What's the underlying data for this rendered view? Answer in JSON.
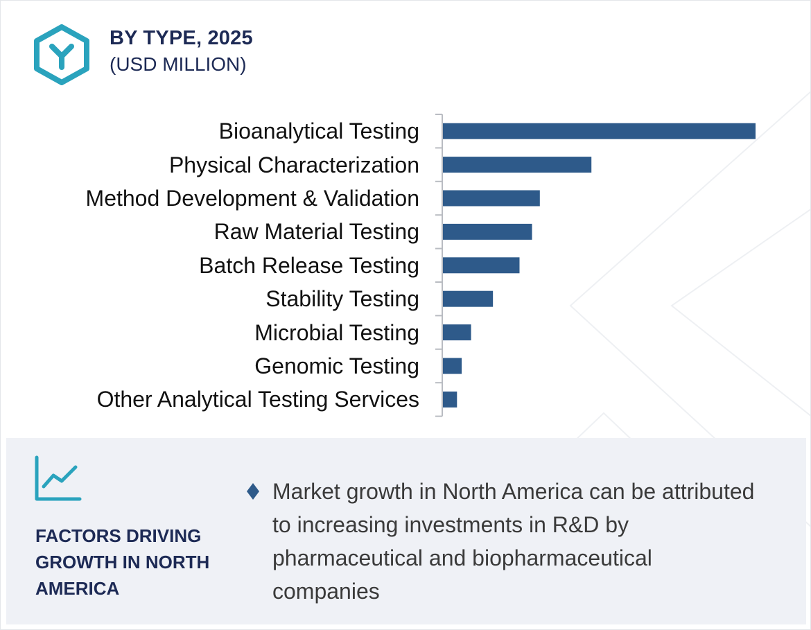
{
  "header": {
    "title": "BY TYPE, 2025",
    "subtitle": "(USD MILLION)",
    "icon": "hexagon-y-logo-icon"
  },
  "colors": {
    "bar": "#2e5a8a",
    "accent": "#2aa3bd",
    "navy": "#1d2a55",
    "footer_bg": "#eff1f6"
  },
  "chart_data": {
    "type": "bar",
    "orientation": "horizontal",
    "title": "BY TYPE, 2025",
    "unit": "(USD MILLION)",
    "categories": [
      "Bioanalytical Testing",
      "Physical Characterization",
      "Method Development & Validation",
      "Raw Material Testing",
      "Batch Release Testing",
      "Stability Testing",
      "Microbial Testing",
      "Genomic Testing",
      "Other Analytical Testing Services"
    ],
    "values": [
      100,
      47.5,
      31,
      28.5,
      24.5,
      16,
      9,
      6,
      4.5
    ],
    "value_scale": "relative (no axis or data labels shown)",
    "xlim": [
      0,
      100
    ],
    "grid": false,
    "legend": "none"
  },
  "footer": {
    "icon": "trend-line-chart-icon",
    "title": "FACTORS DRIVING GROWTH IN NORTH AMERICA",
    "bullet_icon": "diamond-bullet-icon",
    "bullet_text": "Market growth in North America can be attributed to increasing investments in R&D by pharmaceutical and biopharmaceutical companies"
  }
}
